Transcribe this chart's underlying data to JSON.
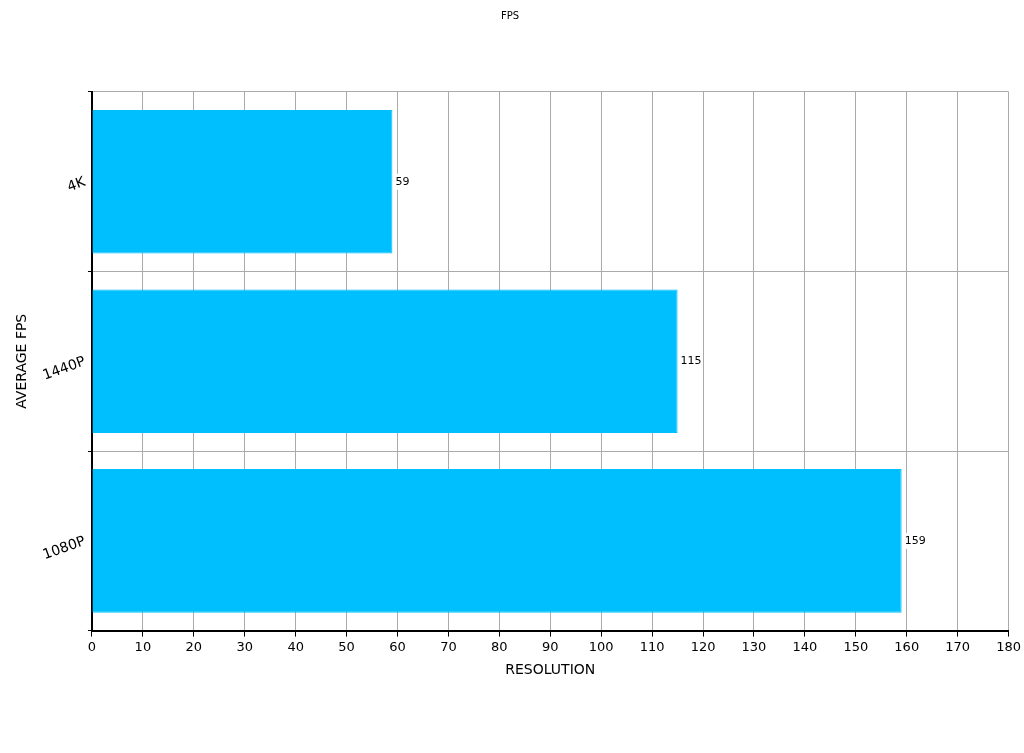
{
  "chart_data": {
    "type": "bar",
    "orientation": "horizontal",
    "title": "FPS",
    "xlabel": "RESOLUTION",
    "ylabel": "AVERAGE FPS",
    "categories": [
      "4K",
      "1440P",
      "1080P"
    ],
    "values": [
      59,
      115,
      159
    ],
    "color": "#00bfff",
    "xlim": [
      0,
      180
    ],
    "xticks": [
      0,
      10,
      20,
      30,
      40,
      50,
      60,
      70,
      80,
      90,
      100,
      110,
      120,
      130,
      140,
      150,
      160,
      170,
      180
    ],
    "grid": true,
    "data_labels": true
  }
}
